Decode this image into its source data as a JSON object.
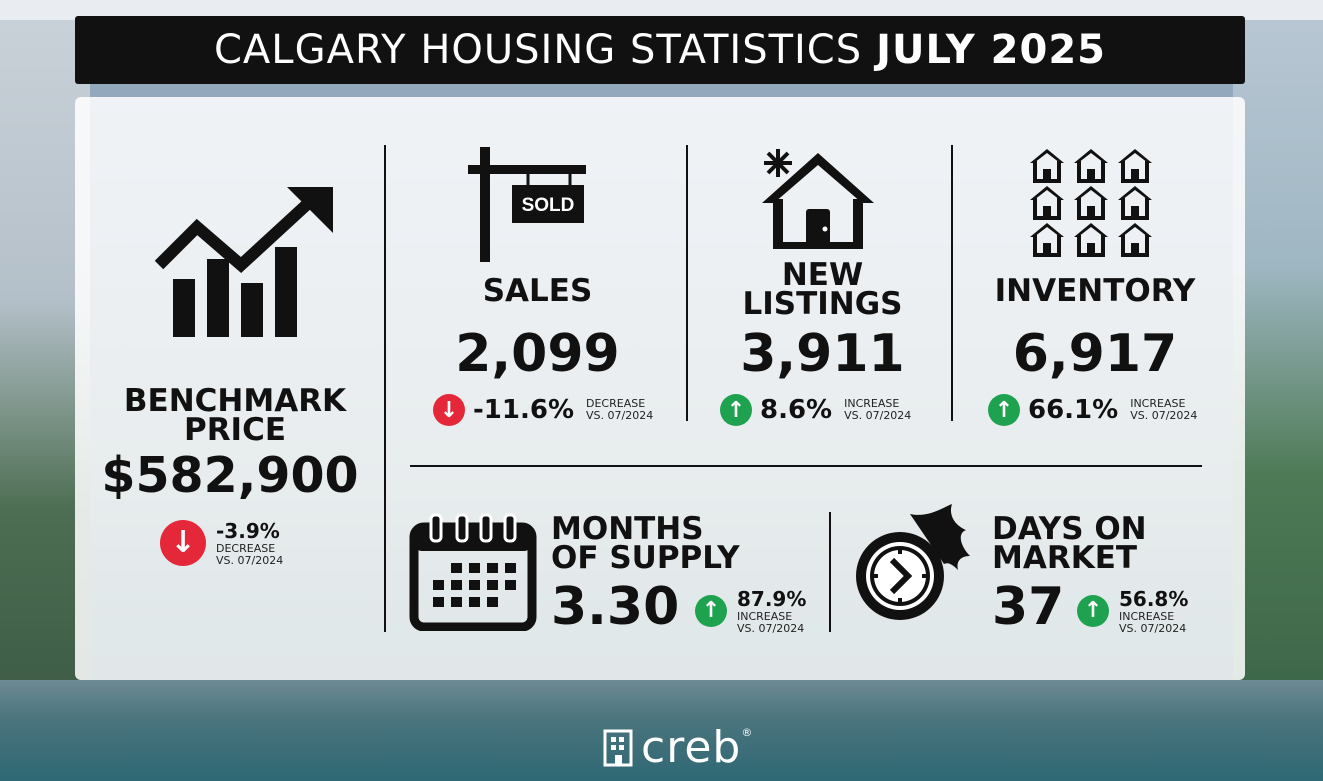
{
  "title": {
    "part1": "CALGARY HOUSING STATISTICS",
    "part2": "JULY 2025"
  },
  "colors": {
    "decrease": "#e4283a",
    "increase": "#1fa24f"
  },
  "benchmark": {
    "label_line1": "BENCHMARK",
    "label_line2": "PRICE",
    "value": "$582,900",
    "change": "-3.9%",
    "note_line1": "DECREASE",
    "note_line2": "VS. 07/2024",
    "icon": "trending-up-chart-icon"
  },
  "sales": {
    "label": "SALES",
    "value": "2,099",
    "change": "-11.6%",
    "note_line1": "DECREASE",
    "note_line2": "VS. 07/2024",
    "sign_text": "SOLD",
    "icon": "sold-sign-icon"
  },
  "new_listings": {
    "label_line1": "NEW",
    "label_line2": "LISTINGS",
    "value": "3,911",
    "change": "8.6%",
    "note_line1": "INCREASE",
    "note_line2": "VS. 07/2024",
    "icon": "new-house-icon"
  },
  "inventory": {
    "label": "INVENTORY",
    "value": "6,917",
    "change": "66.1%",
    "note_line1": "INCREASE",
    "note_line2": "VS. 07/2024",
    "icon": "houses-grid-icon"
  },
  "months_supply": {
    "label_line1": "MONTHS",
    "label_line2": "OF SUPPLY",
    "value": "3.30",
    "change": "87.9%",
    "note_line1": "INCREASE",
    "note_line2": "VS. 07/2024",
    "icon": "calendar-icon"
  },
  "days_on_market": {
    "label_line1": "DAYS ON",
    "label_line2": "MARKET",
    "value": "37",
    "change": "56.8%",
    "note_line1": "INCREASE",
    "note_line2": "VS. 07/2024",
    "icon": "fast-clock-icon"
  },
  "footer": {
    "logo_text": "creb",
    "reg_mark": "®"
  }
}
